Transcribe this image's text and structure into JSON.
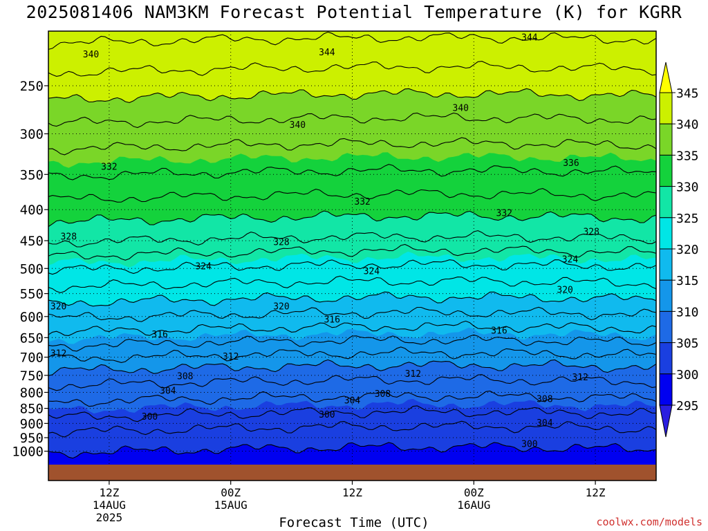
{
  "chart_data": {
    "type": "heatmap",
    "title": "2025081406 NAM3KM Forecast Potential Temperature (K) for KGRR",
    "xlabel": "Forecast Time (UTC)",
    "ylabel": "",
    "y_ticks": [
      250,
      300,
      350,
      400,
      450,
      500,
      550,
      600,
      650,
      700,
      750,
      800,
      850,
      900,
      950,
      1000
    ],
    "y_tick_labels": [
      "250",
      "300",
      "350",
      "400",
      "450",
      "500",
      "550",
      "600",
      "650",
      "700",
      "750",
      "800",
      "850",
      "900",
      "950",
      "1000"
    ],
    "ylim": [
      1000,
      200
    ],
    "x_range_hours": [
      0,
      60
    ],
    "x_ticks": [
      {
        "hour": 6,
        "lines": [
          "12Z",
          "14AUG",
          "2025"
        ]
      },
      {
        "hour": 18,
        "lines": [
          "00Z",
          "15AUG"
        ]
      },
      {
        "hour": 30,
        "lines": [
          "12Z"
        ]
      },
      {
        "hour": 42,
        "lines": [
          "00Z",
          "16AUG"
        ]
      },
      {
        "hour": 54,
        "lines": [
          "12Z"
        ]
      }
    ],
    "grid": true,
    "colorbar": {
      "levels": [
        295,
        300,
        305,
        310,
        315,
        320,
        325,
        330,
        335,
        340,
        345
      ],
      "labels": [
        "295",
        "300",
        "305",
        "310",
        "315",
        "320",
        "325",
        "330",
        "335",
        "340",
        "345"
      ],
      "colors": [
        "#2a1ee0",
        "#0000f0",
        "#1a3fe0",
        "#1e6ae6",
        "#1496ea",
        "#10baee",
        "#00e6e6",
        "#12e6a6",
        "#14d23c",
        "#7ad628",
        "#ccf000",
        "#ffff00"
      ]
    },
    "contour_interval": 2,
    "theta_profile": {
      "pressure": [
        1000,
        950,
        900,
        850,
        800,
        750,
        700,
        650,
        600,
        550,
        500,
        450,
        400,
        350,
        300,
        250,
        200
      ],
      "theta": [
        300,
        301,
        303,
        305,
        307,
        309,
        312,
        315,
        318,
        321,
        324,
        328,
        331,
        334,
        337,
        341,
        345
      ]
    },
    "contour_labels": [
      {
        "text": "344",
        "hour": 27.5,
        "p": 220
      },
      {
        "text": "344",
        "hour": 47.5,
        "p": 208
      },
      {
        "text": "340",
        "hour": 4.2,
        "p": 222
      },
      {
        "text": "340",
        "hour": 24.6,
        "p": 290
      },
      {
        "text": "340",
        "hour": 40.7,
        "p": 272
      },
      {
        "text": "336",
        "hour": 51.6,
        "p": 335
      },
      {
        "text": "332",
        "hour": 6.0,
        "p": 340
      },
      {
        "text": "332",
        "hour": 31.0,
        "p": 388
      },
      {
        "text": "332",
        "hour": 45.0,
        "p": 405
      },
      {
        "text": "328",
        "hour": 2.0,
        "p": 443
      },
      {
        "text": "328",
        "hour": 23.0,
        "p": 452
      },
      {
        "text": "328",
        "hour": 53.6,
        "p": 435
      },
      {
        "text": "324",
        "hour": 15.3,
        "p": 496
      },
      {
        "text": "324",
        "hour": 31.9,
        "p": 505
      },
      {
        "text": "324",
        "hour": 51.5,
        "p": 483
      },
      {
        "text": "320",
        "hour": 1.0,
        "p": 577
      },
      {
        "text": "320",
        "hour": 23.0,
        "p": 577
      },
      {
        "text": "320",
        "hour": 51.0,
        "p": 542
      },
      {
        "text": "316",
        "hour": 11.0,
        "p": 642
      },
      {
        "text": "316",
        "hour": 28.0,
        "p": 607
      },
      {
        "text": "316",
        "hour": 44.5,
        "p": 633
      },
      {
        "text": "312",
        "hour": 1.0,
        "p": 690
      },
      {
        "text": "312",
        "hour": 18.0,
        "p": 698
      },
      {
        "text": "312",
        "hour": 36.0,
        "p": 745
      },
      {
        "text": "312",
        "hour": 52.5,
        "p": 755
      },
      {
        "text": "308",
        "hour": 13.5,
        "p": 752
      },
      {
        "text": "308",
        "hour": 33.0,
        "p": 804
      },
      {
        "text": "308",
        "hour": 49.0,
        "p": 820
      },
      {
        "text": "304",
        "hour": 11.8,
        "p": 795
      },
      {
        "text": "304",
        "hour": 30.0,
        "p": 825
      },
      {
        "text": "304",
        "hour": 49.0,
        "p": 898
      },
      {
        "text": "300",
        "hour": 10.0,
        "p": 877
      },
      {
        "text": "300",
        "hour": 27.5,
        "p": 870
      },
      {
        "text": "300",
        "hour": 47.5,
        "p": 973
      }
    ]
  },
  "colorbar_labels": [
    "345",
    "340",
    "335",
    "330",
    "325",
    "320",
    "315",
    "310",
    "305",
    "300",
    "295"
  ],
  "footer": {
    "credit": "coolwx.com/models"
  },
  "colors": {
    "ground": "#a0522d",
    "contour": "#000000",
    "credit": "#d0302e"
  }
}
